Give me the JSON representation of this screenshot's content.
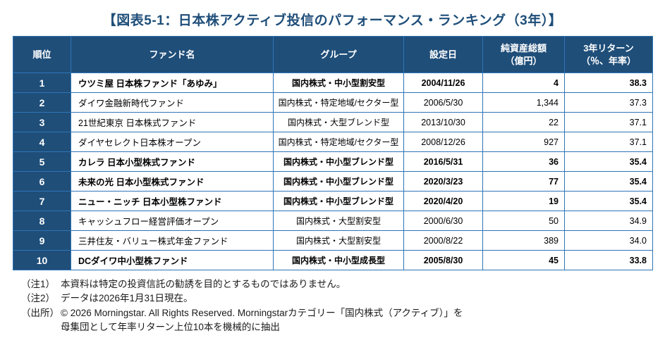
{
  "title": "【図表5-1：日本株アクティブ投信のパフォーマンス・ランキング（3年）】",
  "table": {
    "headers": [
      "順位",
      "ファンド名",
      "グループ",
      "設定日",
      "純資産総額\n（億円）",
      "3年リターン\n（％、年率）"
    ],
    "rows": [
      {
        "rank": "1",
        "fund": "ウツミ屋 日本株ファンド「あゆみ」",
        "group": "国内株式・中小型割安型",
        "date": "2004/11/26",
        "assets": "4",
        "return": "38.3",
        "bold": true
      },
      {
        "rank": "2",
        "fund": "ダイワ金融新時代ファンド",
        "group": "国内株式・特定地域/セクター型",
        "date": "2006/5/30",
        "assets": "1,344",
        "return": "37.3",
        "bold": false
      },
      {
        "rank": "3",
        "fund": "21世紀東京 日本株式ファンド",
        "group": "国内株式・大型ブレンド型",
        "date": "2013/10/30",
        "assets": "22",
        "return": "37.1",
        "bold": false
      },
      {
        "rank": "4",
        "fund": "ダイヤセレクト日本株オープン",
        "group": "国内株式・特定地域/セクター型",
        "date": "2008/12/26",
        "assets": "927",
        "return": "37.1",
        "bold": false
      },
      {
        "rank": "5",
        "fund": "カレラ 日本小型株式ファンド",
        "group": "国内株式・中小型ブレンド型",
        "date": "2016/5/31",
        "assets": "36",
        "return": "35.4",
        "bold": true
      },
      {
        "rank": "6",
        "fund": "未来の光 日本小型株式ファンド",
        "group": "国内株式・中小型ブレンド型",
        "date": "2020/3/23",
        "assets": "77",
        "return": "35.4",
        "bold": true
      },
      {
        "rank": "7",
        "fund": "ニュー・ニッチ 日本小型株ファンド",
        "group": "国内株式・中小型ブレンド型",
        "date": "2020/4/20",
        "assets": "19",
        "return": "35.4",
        "bold": true
      },
      {
        "rank": "8",
        "fund": "キャッシュフロー経営評価オープン",
        "group": "国内株式・大型割安型",
        "date": "2000/6/30",
        "assets": "50",
        "return": "34.9",
        "bold": false
      },
      {
        "rank": "9",
        "fund": "三井住友・バリュー株式年金ファンド",
        "group": "国内株式・大型割安型",
        "date": "2000/8/22",
        "assets": "389",
        "return": "34.0",
        "bold": false
      },
      {
        "rank": "10",
        "fund": "DCダイワ中小型株ファンド",
        "group": "国内株式・中小型成長型",
        "date": "2005/8/30",
        "assets": "45",
        "return": "33.8",
        "bold": true
      }
    ]
  },
  "notes": [
    {
      "label": "（注1）",
      "text": "本資料は特定の投資信託の勧誘を目的とするものではありません。"
    },
    {
      "label": "（注2）",
      "text": "データは2026年1月31日現在。"
    },
    {
      "label": "（出所）",
      "text": "© 2026 Morningstar. All Rights Reserved. Morningstarカテゴリー「国内株式（アクティブ）」を\n母集団として年率リターン上位10本を機械的に抽出"
    }
  ],
  "colors": {
    "header_bg": "#1F4E79",
    "border": "#2E75B6",
    "title": "#1F4E79"
  }
}
